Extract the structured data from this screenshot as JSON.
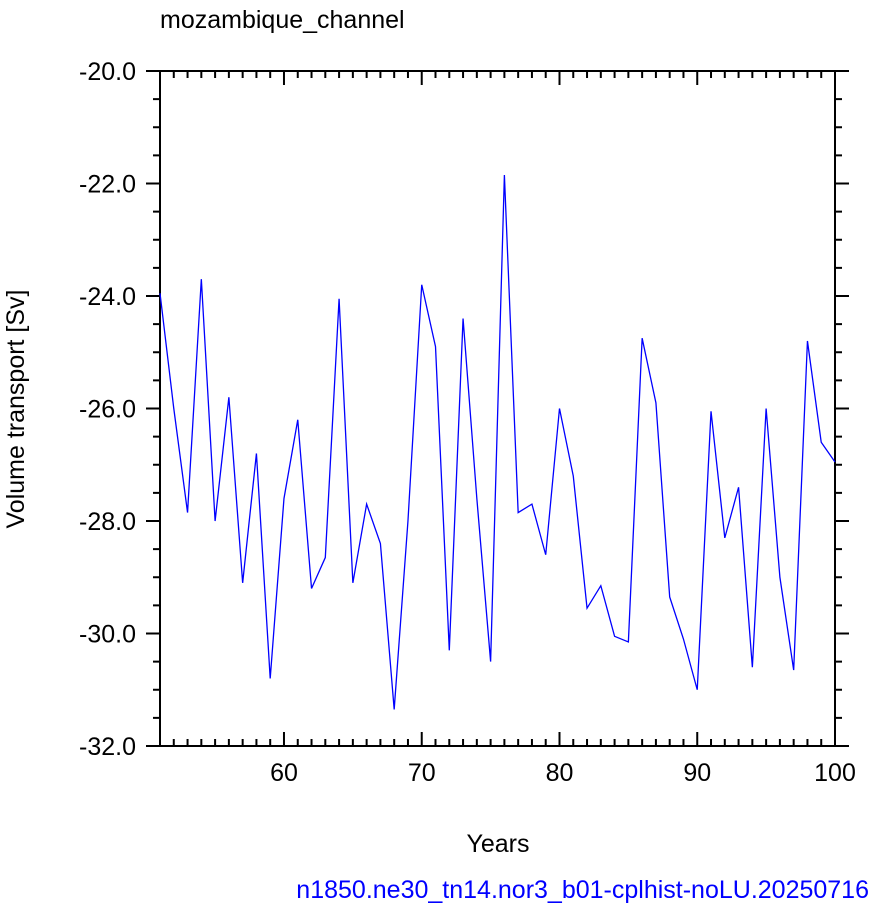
{
  "chart_data": {
    "type": "line",
    "title": "mozambique_channel",
    "xlabel": "Years",
    "ylabel": "Volume transport [Sv]",
    "subtitle": "n1850.ne30_tn14.nor3_b01-cplhist-noLU.20250716",
    "xlim": [
      51,
      100
    ],
    "ylim": [
      -32.0,
      -20.0
    ],
    "x_ticks": [
      60,
      70,
      80,
      90,
      100
    ],
    "x_tick_labels": [
      "60",
      "70",
      "80",
      "90",
      "100"
    ],
    "y_ticks": [
      -32.0,
      -30.0,
      -28.0,
      -26.0,
      -24.0,
      -22.0,
      -20.0
    ],
    "y_tick_labels": [
      "-32.0",
      "-30.0",
      "-28.0",
      "-26.0",
      "-24.0",
      "-22.0",
      "-20.0"
    ],
    "grid": false,
    "series": [
      {
        "color": "#0000ff",
        "x": [
          51,
          52,
          53,
          54,
          55,
          56,
          57,
          58,
          59,
          60,
          61,
          62,
          63,
          64,
          65,
          66,
          67,
          68,
          69,
          70,
          71,
          72,
          73,
          74,
          75,
          76,
          77,
          78,
          79,
          80,
          81,
          82,
          83,
          84,
          85,
          86,
          87,
          88,
          89,
          90,
          91,
          92,
          93,
          94,
          95,
          96,
          97,
          98,
          99,
          100
        ],
        "values": [
          -23.95,
          -26.0,
          -27.85,
          -23.7,
          -28.0,
          -25.8,
          -29.1,
          -26.8,
          -30.8,
          -27.6,
          -26.2,
          -29.2,
          -28.65,
          -24.05,
          -29.1,
          -27.7,
          -28.4,
          -31.35,
          -28.0,
          -23.8,
          -24.9,
          -30.3,
          -24.4,
          -27.6,
          -30.5,
          -21.85,
          -27.85,
          -27.7,
          -28.6,
          -26.0,
          -27.2,
          -29.55,
          -29.15,
          -30.05,
          -30.15,
          -24.75,
          -25.9,
          -29.35,
          -30.1,
          -31.0,
          -26.05,
          -28.3,
          -27.4,
          -30.6,
          -26.0,
          -29.0,
          -30.65,
          -24.8,
          -26.6,
          -26.95
        ]
      }
    ]
  }
}
